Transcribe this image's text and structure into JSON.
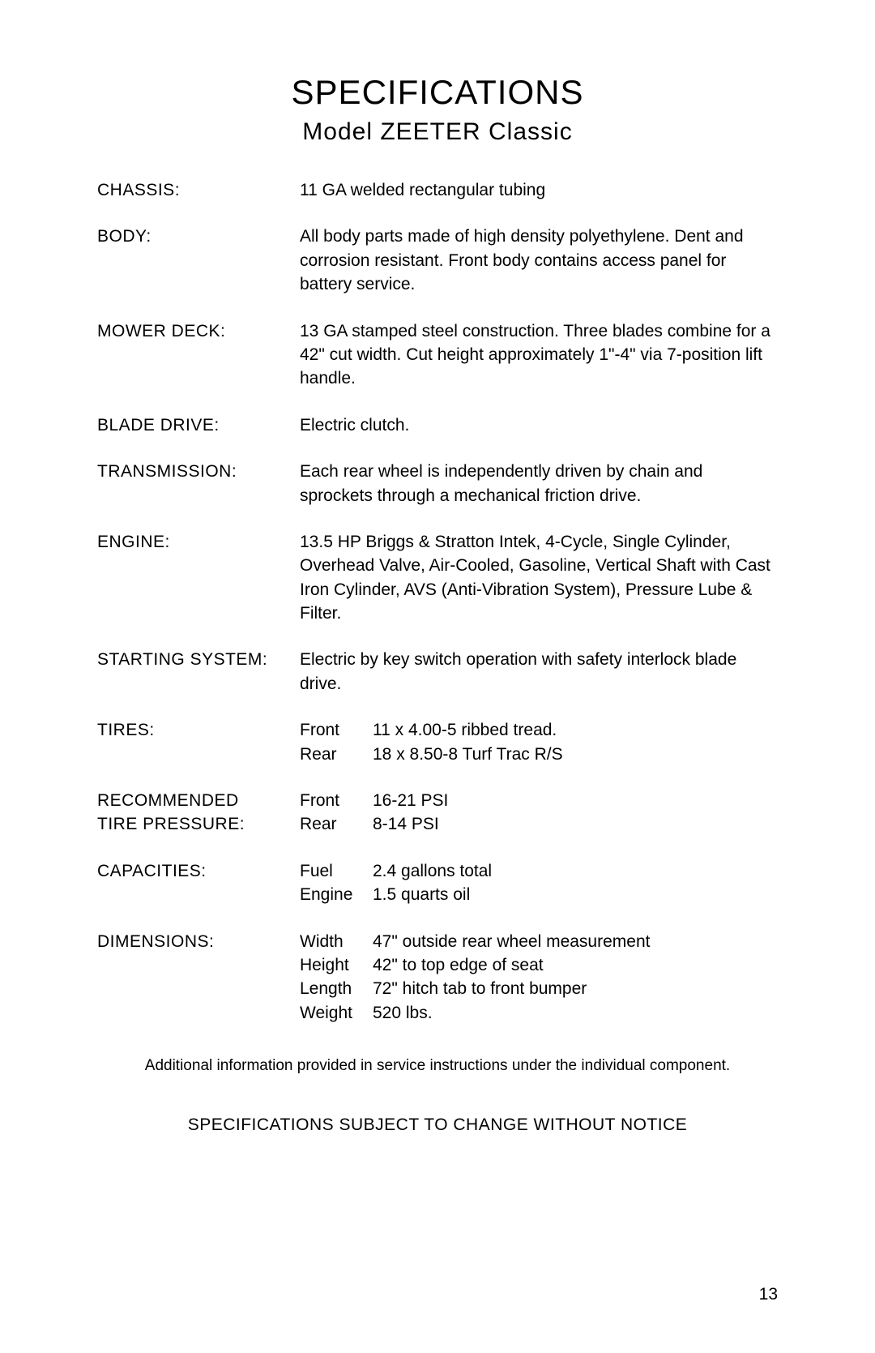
{
  "title": "SPECIFICATIONS",
  "subtitle": "Model ZEETER Classic",
  "specs": {
    "chassis": {
      "label": "CHASSIS:",
      "value": "11 GA welded rectangular tubing"
    },
    "body": {
      "label": "BODY:",
      "value": "All body parts made of high density polyethylene. Dent and corrosion resistant. Front body contains access panel for battery service."
    },
    "mower_deck": {
      "label": "MOWER DECK:",
      "value": "13 GA stamped steel construction. Three blades combine for a 42\" cut width. Cut height approximately 1\"-4\" via 7-position lift handle."
    },
    "blade_drive": {
      "label": "BLADE DRIVE:",
      "value": "Electric clutch."
    },
    "transmission": {
      "label": "TRANSMISSION:",
      "value": "Each rear wheel is independently driven by chain and sprockets through a mechanical friction drive."
    },
    "engine": {
      "label": "ENGINE:",
      "value": "13.5 HP Briggs & Stratton Intek, 4-Cycle, Single Cylinder, Overhead Valve, Air-Cooled, Gasoline, Vertical Shaft with Cast Iron Cylinder, AVS (Anti-Vibration System), Pressure Lube & Filter."
    },
    "starting_system": {
      "label": "STARTING SYSTEM:",
      "value": "Electric by key switch operation with safety interlock blade drive."
    },
    "tires": {
      "label": "TIRES:",
      "rows": [
        {
          "sub": "Front",
          "val": "11 x 4.00-5 ribbed tread."
        },
        {
          "sub": "Rear",
          "val": "18 x 8.50-8 Turf Trac R/S"
        }
      ]
    },
    "tire_pressure": {
      "label_line1": "RECOMMENDED",
      "label_line2": "TIRE PRESSURE:",
      "rows": [
        {
          "sub": "Front",
          "val": "16-21 PSI"
        },
        {
          "sub": "Rear",
          "val": "8-14 PSI"
        }
      ]
    },
    "capacities": {
      "label": "CAPACITIES:",
      "rows": [
        {
          "sub": "Fuel",
          "val": "2.4 gallons total"
        },
        {
          "sub": "Engine",
          "val": "1.5 quarts oil"
        }
      ]
    },
    "dimensions": {
      "label": "DIMENSIONS:",
      "rows": [
        {
          "sub": "Width",
          "val": "47\" outside rear wheel measurement"
        },
        {
          "sub": "Height",
          "val": "42\" to top edge of seat"
        },
        {
          "sub": "Length",
          "val": "72\" hitch tab to front bumper"
        },
        {
          "sub": "Weight",
          "val": "520 lbs."
        }
      ]
    }
  },
  "footnote": "Additional information provided in service instructions under the individual component.",
  "notice": "SPECIFICATIONS SUBJECT TO CHANGE WITHOUT NOTICE",
  "page_number": "13"
}
